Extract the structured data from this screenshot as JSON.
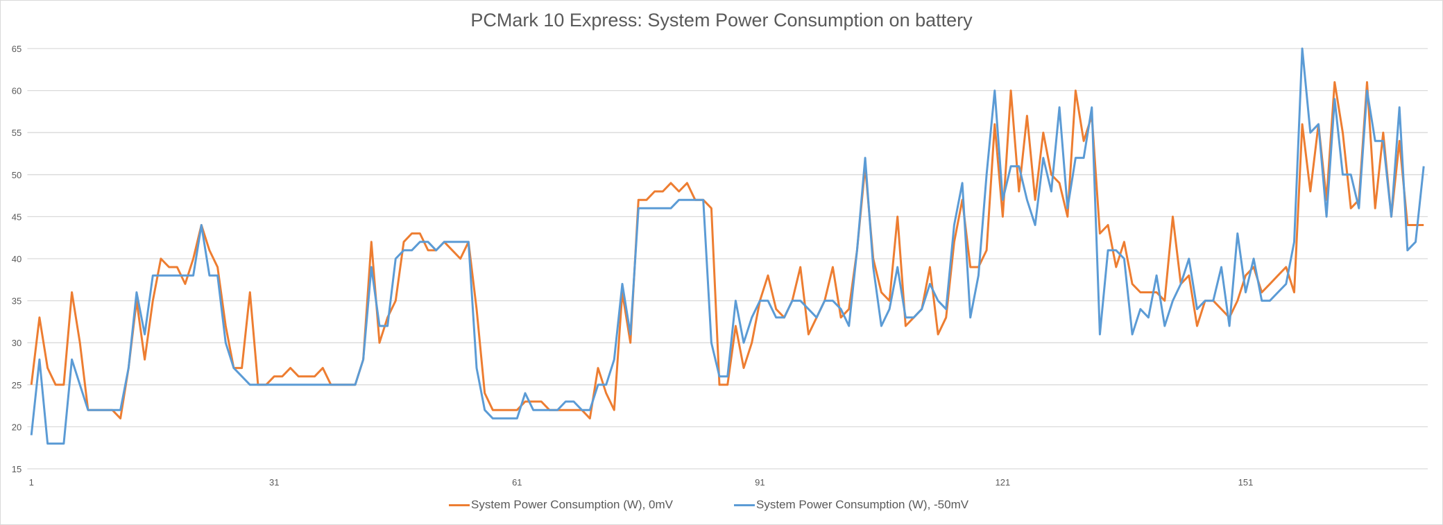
{
  "chart_data": {
    "type": "line",
    "title": "PCMark 10 Express: System Power Consumption on battery",
    "xlabel": "",
    "ylabel": "",
    "ylim": [
      15,
      65
    ],
    "yticks": [
      15,
      20,
      25,
      30,
      35,
      40,
      45,
      50,
      55,
      60,
      65
    ],
    "x_start": 1,
    "x_end": 173,
    "xticks": [
      1,
      31,
      61,
      91,
      121,
      151
    ],
    "grid": true,
    "legend_position": "bottom",
    "series": [
      {
        "name": "System Power Consumption (W), 0mV",
        "color": "#ED7D31",
        "values": [
          25,
          33,
          27,
          25,
          25,
          36,
          30,
          22,
          22,
          22,
          22,
          21,
          27,
          35,
          28,
          35,
          40,
          39,
          39,
          37,
          40,
          44,
          41,
          39,
          32,
          27,
          27,
          36,
          25,
          25,
          26,
          26,
          27,
          26,
          26,
          26,
          27,
          25,
          25,
          25,
          25,
          28,
          42,
          30,
          33,
          35,
          42,
          43,
          43,
          41,
          41,
          42,
          41,
          40,
          42,
          34,
          24,
          22,
          22,
          22,
          22,
          23,
          23,
          23,
          22,
          22,
          22,
          22,
          22,
          21,
          27,
          24,
          22,
          36,
          30,
          47,
          47,
          48,
          48,
          49,
          48,
          49,
          47,
          47,
          46,
          25,
          25,
          32,
          27,
          30,
          35,
          38,
          34,
          33,
          35,
          39,
          31,
          33,
          35,
          39,
          33,
          34,
          41,
          51,
          40,
          36,
          35,
          45,
          32,
          33,
          34,
          39,
          31,
          33,
          42,
          47,
          39,
          39,
          41,
          56,
          45,
          60,
          48,
          57,
          47,
          55,
          50,
          49,
          45,
          60,
          54,
          57,
          43,
          44,
          39,
          42,
          37,
          36,
          36,
          36,
          35,
          45,
          37,
          38,
          32,
          35,
          35,
          34,
          33,
          35,
          38,
          39,
          36,
          37,
          38,
          39,
          36,
          56,
          48,
          56,
          47,
          61,
          55,
          46,
          47,
          61,
          46,
          55,
          45,
          54,
          44,
          44,
          44
        ]
      },
      {
        "name": "System Power Consumption (W), -50mV",
        "color": "#5B9BD5",
        "values": [
          19,
          28,
          18,
          18,
          18,
          28,
          25,
          22,
          22,
          22,
          22,
          22,
          27,
          36,
          31,
          38,
          38,
          38,
          38,
          38,
          38,
          44,
          38,
          38,
          30,
          27,
          26,
          25,
          25,
          25,
          25,
          25,
          25,
          25,
          25,
          25,
          25,
          25,
          25,
          25,
          25,
          28,
          39,
          32,
          32,
          40,
          41,
          41,
          42,
          42,
          41,
          42,
          42,
          42,
          42,
          27,
          22,
          21,
          21,
          21,
          21,
          24,
          22,
          22,
          22,
          22,
          23,
          23,
          22,
          22,
          25,
          25,
          28,
          37,
          31,
          46,
          46,
          46,
          46,
          46,
          47,
          47,
          47,
          47,
          30,
          26,
          26,
          35,
          30,
          33,
          35,
          35,
          33,
          33,
          35,
          35,
          34,
          33,
          35,
          35,
          34,
          32,
          41,
          52,
          39,
          32,
          34,
          39,
          33,
          33,
          34,
          37,
          35,
          34,
          44,
          49,
          33,
          38,
          50,
          60,
          47,
          51,
          51,
          47,
          44,
          52,
          48,
          58,
          46,
          52,
          52,
          58,
          31,
          41,
          41,
          40,
          31,
          34,
          33,
          38,
          32,
          35,
          37,
          40,
          34,
          35,
          35,
          39,
          32,
          43,
          36,
          40,
          35,
          35,
          36,
          37,
          42,
          65,
          55,
          56,
          45,
          59,
          50,
          50,
          46,
          60,
          54,
          54,
          45,
          58,
          41,
          42,
          51
        ]
      }
    ]
  }
}
